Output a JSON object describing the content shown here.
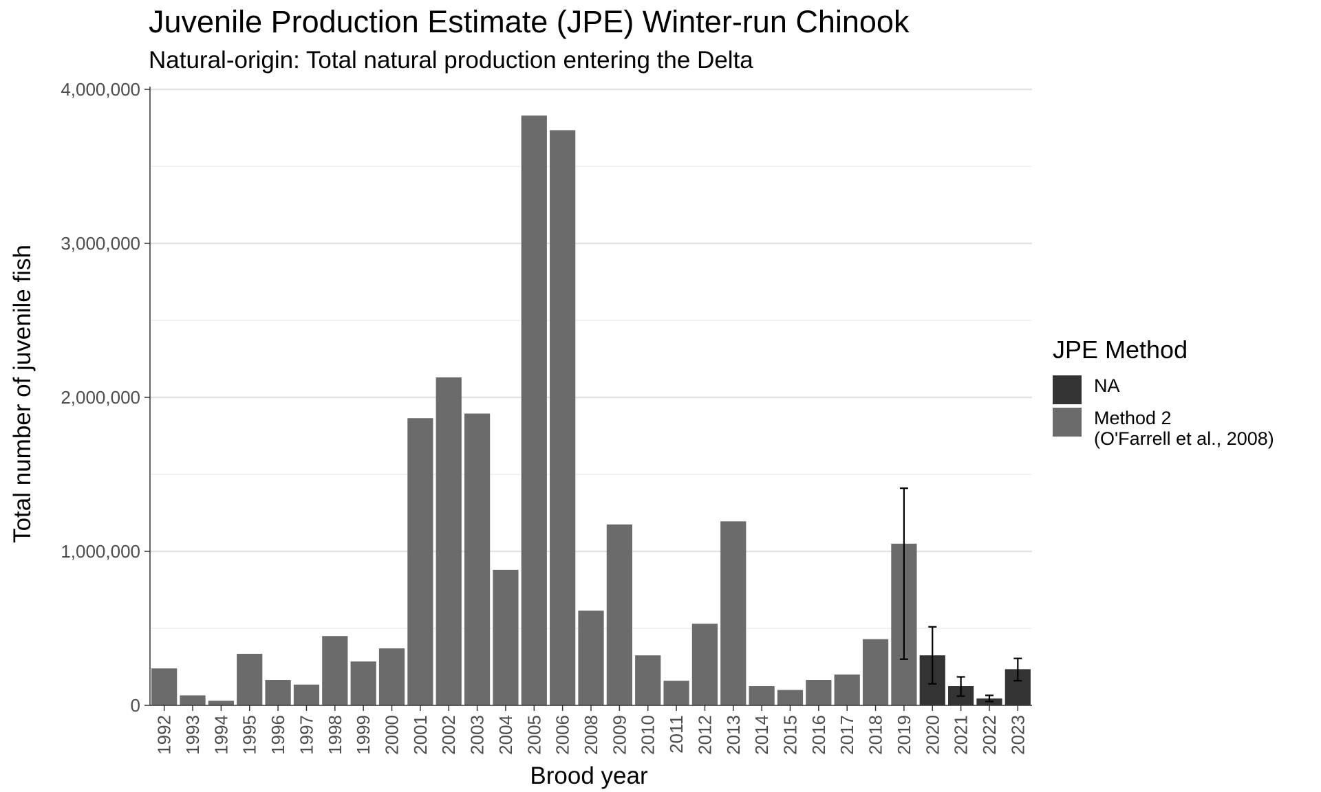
{
  "chart_data": {
    "type": "bar",
    "title": "Juvenile Production Estimate (JPE) Winter-run Chinook",
    "subtitle": "Natural-origin: Total natural production entering the Delta",
    "xlabel": "Brood year",
    "ylabel": "Total number of juvenile fish",
    "ylim": [
      0,
      4000000
    ],
    "y_ticks": [
      0,
      1000000,
      2000000,
      3000000,
      4000000
    ],
    "y_tick_labels": [
      "0",
      "1,000,000",
      "2,000,000",
      "3,000,000",
      "4,000,000"
    ],
    "grid": true,
    "legend": {
      "title": "JPE Method",
      "position": "right",
      "entries": [
        {
          "label": "NA",
          "color": "#333333"
        },
        {
          "label": "Method 2\n(O'Farrell et al., 2008)",
          "color": "#6b6b6b"
        }
      ]
    },
    "categories": [
      "1992",
      "1993",
      "1994",
      "1995",
      "1996",
      "1997",
      "1998",
      "1999",
      "2000",
      "2001",
      "2002",
      "2003",
      "2004",
      "2005",
      "2006",
      "2008",
      "2009",
      "2010",
      "2011",
      "2012",
      "2013",
      "2014",
      "2015",
      "2016",
      "2017",
      "2018",
      "2019",
      "2020",
      "2021",
      "2022",
      "2023"
    ],
    "values": [
      240000,
      65000,
      30000,
      335000,
      165000,
      135000,
      450000,
      285000,
      370000,
      1865000,
      2130000,
      1895000,
      880000,
      3830000,
      3735000,
      615000,
      1175000,
      325000,
      160000,
      530000,
      1195000,
      125000,
      100000,
      165000,
      200000,
      430000,
      1050000,
      325000,
      125000,
      45000,
      235000
    ],
    "methods": [
      "Method 2",
      "Method 2",
      "Method 2",
      "Method 2",
      "Method 2",
      "Method 2",
      "Method 2",
      "Method 2",
      "Method 2",
      "Method 2",
      "Method 2",
      "Method 2",
      "Method 2",
      "Method 2",
      "Method 2",
      "Method 2",
      "Method 2",
      "Method 2",
      "Method 2",
      "Method 2",
      "Method 2",
      "Method 2",
      "Method 2",
      "Method 2",
      "Method 2",
      "Method 2",
      "Method 2",
      "NA",
      "NA",
      "NA",
      "NA"
    ],
    "error_bars": {
      "2019": [
        300000,
        1410000
      ],
      "2020": [
        140000,
        510000
      ],
      "2021": [
        60000,
        185000
      ],
      "2022": [
        25000,
        65000
      ],
      "2023": [
        160000,
        305000
      ]
    }
  }
}
